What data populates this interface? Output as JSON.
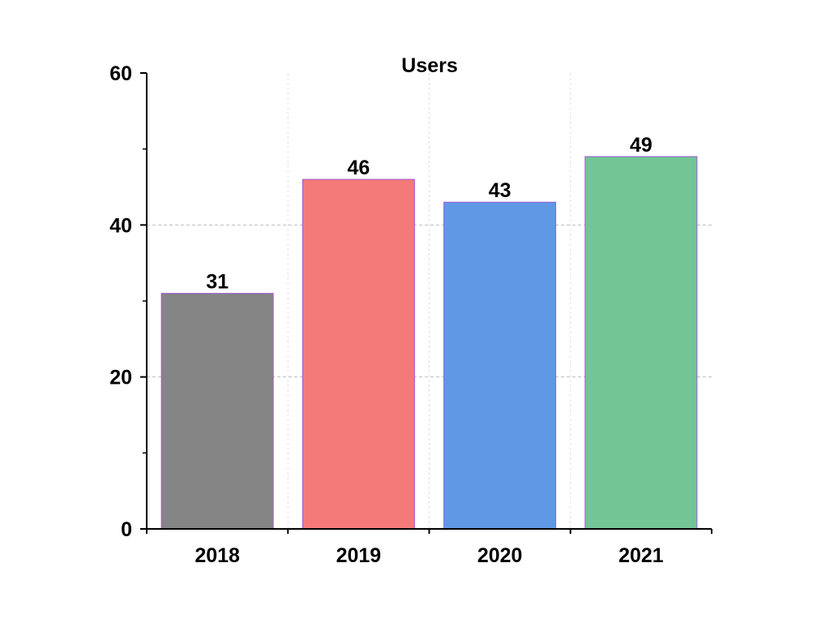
{
  "chart_data": {
    "type": "bar",
    "title": "Users",
    "xlabel": "",
    "ylabel": "",
    "categories": [
      "2018",
      "2019",
      "2020",
      "2021"
    ],
    "values": [
      31,
      46,
      43,
      49
    ],
    "data_labels": [
      "31",
      "46",
      "43",
      "49"
    ],
    "bar_colors": [
      "#858585",
      "#f47a79",
      "#6098e6",
      "#72c594"
    ],
    "bar_edge_color": "#9b59d0",
    "ylim": [
      0,
      60
    ],
    "yticks": [
      0,
      20,
      40,
      60
    ],
    "ytick_labels": [
      "0",
      "20",
      "40",
      "60"
    ],
    "y_minor_ticks": [
      10,
      30,
      50
    ],
    "grid": true,
    "grid_color": "#bdbdbd"
  }
}
